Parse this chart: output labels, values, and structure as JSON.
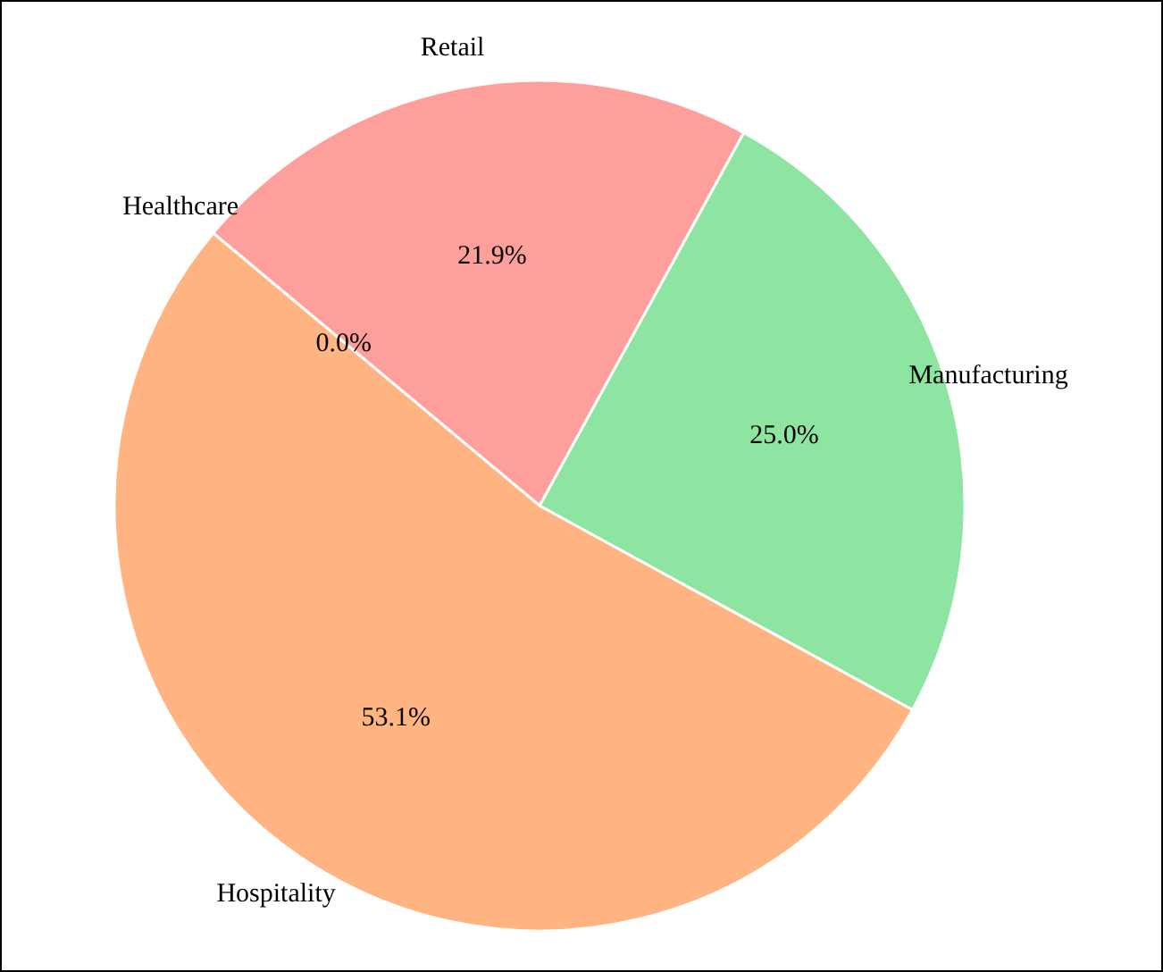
{
  "chart_data": {
    "type": "pie",
    "categories": [
      "Manufacturing",
      "Retail",
      "Healthcare",
      "Hospitality"
    ],
    "values": [
      25.0,
      21.9,
      0.0,
      53.1
    ],
    "colors": [
      "#8de5a1",
      "#ff9f9b",
      "#a1c9f4",
      "#ffb482"
    ],
    "value_labels": [
      "25.0%",
      "21.9%",
      "0.0%",
      "53.1%"
    ]
  }
}
